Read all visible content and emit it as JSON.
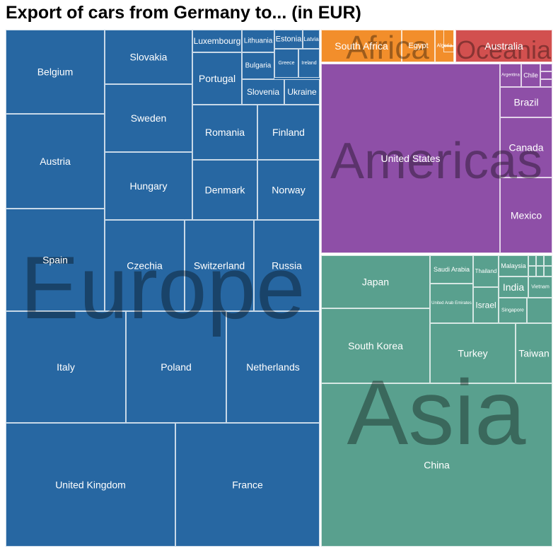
{
  "title": "Export of cars from Germany to... (in EUR)",
  "chart_data": {
    "type": "treemap",
    "title": "Export of cars from Germany to... (in EUR)",
    "regions": [
      {
        "name": "Europe",
        "color": "#2767a2",
        "cells": [
          {
            "label": "Belgium",
            "value": 4.4
          },
          {
            "label": "Austria",
            "value": 4.4
          },
          {
            "label": "Spain",
            "value": 4.4
          },
          {
            "label": "Slovakia",
            "value": 2.5
          },
          {
            "label": "Sweden",
            "value": 3.1
          },
          {
            "label": "Hungary",
            "value": 3.1
          },
          {
            "label": "Luxembourg",
            "value": 0.7
          },
          {
            "label": "Lithuania",
            "value": 0.5
          },
          {
            "label": "Estonia",
            "value": 0.4
          },
          {
            "label": "Latvia",
            "value": 0.2
          },
          {
            "label": "Portugal",
            "value": 1.4
          },
          {
            "label": "Bulgaria",
            "value": 0.5
          },
          {
            "label": "Greece",
            "value": 0.4
          },
          {
            "label": "Ireland",
            "value": 0.3
          },
          {
            "label": "Slovenia",
            "value": 0.7
          },
          {
            "label": "Ukraine",
            "value": 0.6
          },
          {
            "label": "Romania",
            "value": 1.9
          },
          {
            "label": "Finland",
            "value": 1.7
          },
          {
            "label": "Denmark",
            "value": 1.9
          },
          {
            "label": "Norway",
            "value": 1.8
          },
          {
            "label": "Czechia",
            "value": 2.9
          },
          {
            "label": "Switzerland",
            "value": 2.5
          },
          {
            "label": "Russia",
            "value": 2.3
          },
          {
            "label": "Italy",
            "value": 6.5
          },
          {
            "label": "Poland",
            "value": 5.4
          },
          {
            "label": "Netherlands",
            "value": 5.3
          },
          {
            "label": "United Kingdom",
            "value": 13.9
          },
          {
            "label": "France",
            "value": 11.9
          }
        ]
      },
      {
        "name": "Africa",
        "color": "#f28e2b",
        "cells": [
          {
            "label": "South Africa",
            "value": 1.0
          },
          {
            "label": "Egypt",
            "value": 0.25
          },
          {
            "label": "Algeria",
            "value": 0.12
          }
        ]
      },
      {
        "name": "Oceania",
        "color": "#d2504f",
        "cells": [
          {
            "label": "Australia",
            "value": 1.8
          }
        ]
      },
      {
        "name": "Americas",
        "color": "#8e4fa7",
        "cells": [
          {
            "label": "United States",
            "value": 17.5
          },
          {
            "label": "Argentina",
            "value": 0.15
          },
          {
            "label": "Chile",
            "value": 0.15
          },
          {
            "label": "Brazil",
            "value": 0.9
          },
          {
            "label": "Canada",
            "value": 2.2
          },
          {
            "label": "Mexico",
            "value": 2.6
          }
        ]
      },
      {
        "name": "Asia",
        "color": "#59a08e",
        "cells": [
          {
            "label": "Japan",
            "value": 4.0
          },
          {
            "label": "Saudi Arabia",
            "value": 1.0
          },
          {
            "label": "Thailand",
            "value": 0.6
          },
          {
            "label": "Malaysia",
            "value": 0.7
          },
          {
            "label": "India",
            "value": 0.8
          },
          {
            "label": "Vietnam",
            "value": 0.3
          },
          {
            "label": "United Arab Emirates",
            "value": 1.0
          },
          {
            "label": "Israel",
            "value": 0.6
          },
          {
            "label": "Singapore",
            "value": 0.5
          },
          {
            "label": "South Korea",
            "value": 4.5
          },
          {
            "label": "Turkey",
            "value": 2.3
          },
          {
            "label": "Taiwan",
            "value": 1.0
          },
          {
            "label": "China",
            "value": 18.0
          }
        ]
      }
    ]
  }
}
